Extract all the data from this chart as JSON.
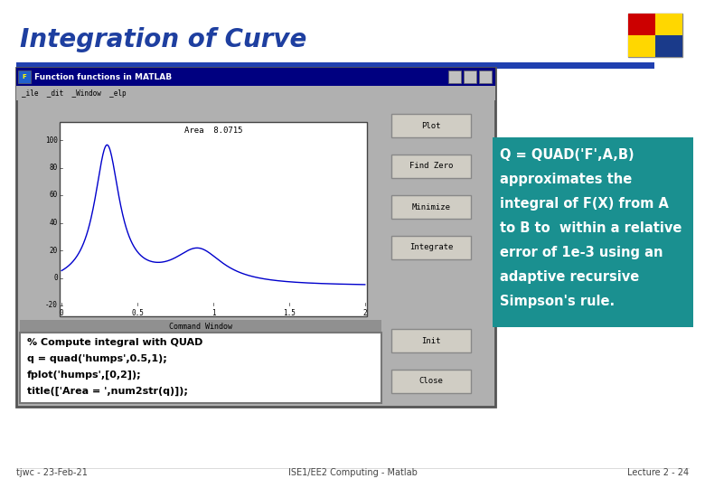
{
  "title": "Integration of Curve",
  "title_color": "#1E3FA0",
  "slide_bg": "#FFFFFF",
  "blue_line_color": "#2040B0",
  "matlab_window": {
    "title_bar": "Function functions in MATLAB",
    "title_bar_bg": "#000080",
    "title_bar_fg": "#FFFFFF",
    "menu": "_ile  _dit  _Window  _elp",
    "plot_title": "Area  8.0715",
    "plot_color": "#0000CC",
    "bg_color": "#B0B0B0",
    "plot_bg": "#FFFFFF",
    "buttons_top": [
      "Plot",
      "Find Zero",
      "Minimize",
      "Integrate"
    ],
    "buttons_bot": [
      "Init",
      "Close"
    ],
    "x_ticks": [
      "0",
      "0.5",
      "1",
      "1.5",
      "2"
    ],
    "y_ticks": [
      "-20",
      "0",
      "20",
      "40",
      "60",
      "80",
      "100"
    ]
  },
  "command_window": {
    "title": "Command Window",
    "title_bg": "#909090",
    "code_lines": [
      "% Compute integral with QUAD",
      "q = quad('humps',0.5,1);",
      "fplot('humps',[0,2]);",
      "title(['Area = ',num2str(q)]);"
    ]
  },
  "info_box": {
    "bg": "#1A9090",
    "fg": "#FFFFFF",
    "lines": [
      "Q = QUAD('F',A,B)",
      "approximates the",
      "integral of F(X) from A",
      "to B to  within a relative",
      "error of 1e-3 using an",
      "adaptive recursive",
      "Simpson's rule."
    ],
    "font_size": 10.5
  },
  "footer_left": "tjwc - 23-Feb-21",
  "footer_center": "ISE1/EE2 Computing - Matlab",
  "footer_right": "Lecture 2 - 24",
  "footer_color": "#444444"
}
